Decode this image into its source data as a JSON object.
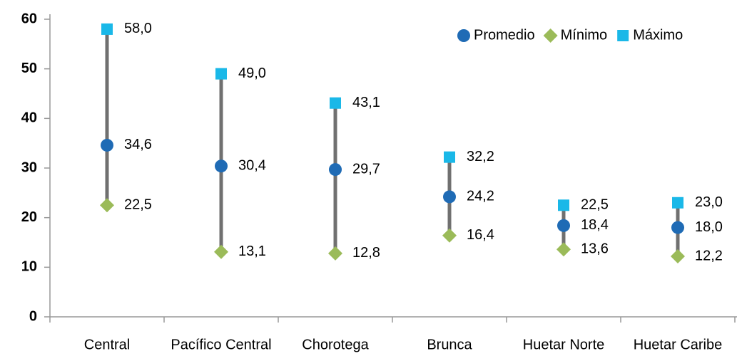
{
  "chart_data": {
    "type": "hilo",
    "categories": [
      "Central",
      "Pacífico Central",
      "Chorotega",
      "Brunca",
      "Huetar Norte",
      "Huetar Caribe"
    ],
    "series": [
      {
        "name": "Promedio",
        "color": "#1f6bb5",
        "marker": "circle",
        "values": [
          34.6,
          30.4,
          29.7,
          24.2,
          18.4,
          18.0
        ],
        "value_labels": [
          "34,6",
          "30,4",
          "29,7",
          "24,2",
          "18,4",
          "18,0"
        ]
      },
      {
        "name": "Mínimo",
        "color": "#9bbb59",
        "marker": "diamond",
        "values": [
          22.5,
          13.1,
          12.8,
          16.4,
          13.6,
          12.2
        ],
        "value_labels": [
          "22,5",
          "13,1",
          "12,8",
          "16,4",
          "13,6",
          "12,2"
        ]
      },
      {
        "name": "Máximo",
        "color": "#1ab8e8",
        "marker": "square",
        "values": [
          58.0,
          49.0,
          43.1,
          32.2,
          22.5,
          23.0
        ],
        "value_labels": [
          "58,0",
          "49,0",
          "43,1",
          "32,2",
          "22,5",
          "23,0"
        ]
      }
    ],
    "range_color": "#707070",
    "ylim": [
      0,
      60
    ],
    "yticks": [
      0,
      10,
      20,
      30,
      40,
      50,
      60
    ],
    "legend": "top-right"
  }
}
